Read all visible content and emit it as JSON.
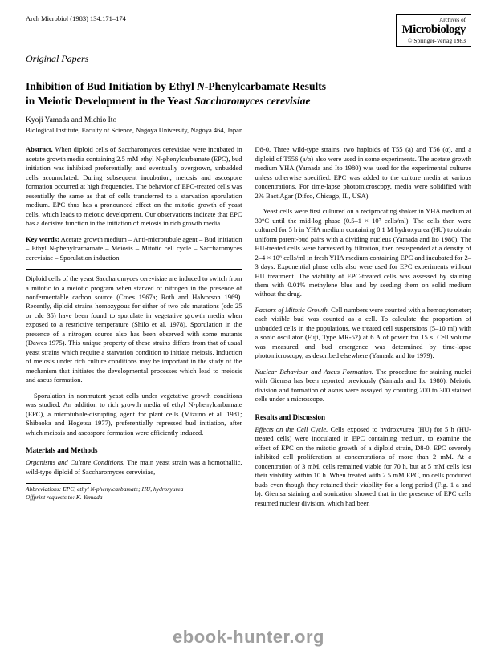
{
  "header": {
    "journal_ref": "Arch Microbiol (1983) 134:171–174",
    "journal_box_top": "Archives of",
    "journal_box_title": "Microbiology",
    "copyright": "© Springer-Verlag 1983"
  },
  "section_label": "Original Papers",
  "title_line1": "Inhibition of Bud Initiation by Ethyl ",
  "title_ital1": "N",
  "title_line1b": "-Phenylcarbamate Results",
  "title_line2": "in Meiotic Development in the Yeast ",
  "title_ital2": "Saccharomyces cerevisiae",
  "authors": "Kyoji Yamada and Michio Ito",
  "affiliation": "Biological Institute, Faculty of Science, Nagoya University, Nagoya 464, Japan",
  "left_col": {
    "abstract_label": "Abstract.",
    "abstract_text": " When diploid cells of Saccharomyces cerevisiae were incubated in acetate growth media containing 2.5 mM ethyl N-phenylcarbamate (EPC), bud initiation was inhibited preferentially, and eventually overgrown, unbudded cells accumulated. During subsequent incubation, meiosis and ascospore formation occurred at high frequencies. The behavior of EPC-treated cells was essentially the same as that of cells transferred to a starvation sporulation medium. EPC thus has a pronounced effect on the mitotic growth of yeast cells, which leads to meiotic development. Our observations indicate that EPC has a decisive function in the initiation of meiosis in rich growth media.",
    "keywords_label": "Key words:",
    "keywords_text": " Acetate growth medium – Anti-microtubule agent – Bud initiation – Ethyl N-phenylcarbamate – Meiosis – Mitotic cell cycle – Saccharomyces cerevisiae – Sporulation induction",
    "body_p1": "Diploid cells of the yeast Saccharomyces cerevisiae are induced to switch from a mitotic to a meiotic program when starved of nitrogen in the presence of nonfermentable carbon source (Croes 1967a; Roth and Halvorson 1969). Recently, diploid strains homozygous for either of two cdc mutations (cdc 25 or cdc 35) have been found to sporulate in vegetative growth media when exposed to a restrictive temperature (Shilo et al. 1978). Sporulation in the presence of a nitrogen source also has been observed with some mutants (Dawes 1975). This unique property of these strains differs from that of usual yeast strains which require a starvation condition to initiate meiosis. Induction of meiosis under rich culture conditions may be important in the study of the mechanism that initiates the developmental processes which lead to meiosis and ascus formation.",
    "body_p2": "Sporulation in nonmutant yeast cells under vegetative growth conditions was studied. An addition to rich growth media of ethyl N-phenylcarbamate (EPC), a microtubule-disrupting agent for plant cells (Mizuno et al. 1981; Shibaoka and Hogetsu 1977), preferentially repressed bud initiation, after which meiosis and ascospore formation were efficiently induced.",
    "materials_head": "Materials and Methods",
    "materials_sub": "Organisms and Culture Conditions.",
    "materials_text": " The main yeast strain was a homothallic, wild-type diploid of Saccharomyces cerevisiae,",
    "abbrev_label": "Abbreviations:",
    "abbrev_text": " EPC, ethyl N-phenylcarbamate; HU, hydroxyurea",
    "offprint_label": "Offprint requests to:",
    "offprint_text": " K. Yamada"
  },
  "right_col": {
    "p1": "D8-0. Three wild-type strains, two haploids of T55 (a) and T56 (α), and a diploid of T556 (a/α) also were used in some experiments. The acetate growth medium YHA (Yamada and Ito 1980) was used for the experimental cultures unless otherwise specified. EPC was added to the culture media at various concentrations. For time-lapse photomicroscopy, media were solidified with 2% Bact Agar (Difco, Chicago, IL, USA).",
    "p2": "Yeast cells were first cultured on a reciprocating shaker in YHA medium at 30°C until the mid-log phase (0.5–1 × 10⁷ cells/ml). The cells then were cultured for 5 h in YHA medium containing 0.1 M hydroxyurea (HU) to obtain uniform parent-bud pairs with a dividing nucleus (Yamada and Ito 1980). The HU-treated cells were harvested by filtration, then resuspended at a density of 2–4 × 10⁶ cells/ml in fresh YHA medium containing EPC and incubated for 2–3 days. Exponential phase cells also were used for EPC experiments without HU treatment. The viability of EPC-treated cells was assessed by staining them with 0.01% methylene blue and by seeding them on solid medium without the drug.",
    "factors_sub": "Factors of Mitotic Growth.",
    "factors_text": " Cell numbers were counted with a hemocytometer; each visible bud was counted as a cell. To calculate the proportion of unbudded cells in the populations, we treated cell suspensions (5–10 ml) with a sonic oscillator (Fuji, Type MR-52) at 6 A of power for 15 s. Cell volume was measured and bud emergence was determined by time-lapse photomicroscopy, as described elsewhere (Yamada and Ito 1979).",
    "nuclear_sub": "Nuclear Behaviour and Ascus Formation.",
    "nuclear_text": " The procedure for staining nuclei with Giemsa has been reported previously (Yamada and Ito 1980). Meiotic division and formation of ascus were assayed by counting 200 to 300 stained cells under a microscope.",
    "results_head": "Results and Discussion",
    "effects_sub": "Effects on the Cell Cycle.",
    "effects_text": " Cells exposed to hydroxyurea (HU) for 5 h (HU-treated cells) were inoculated in EPC containing medium, to examine the effect of EPC on the mitotic growth of a diploid strain, D8-0. EPC severely inhibited cell proliferation at concentrations of more than 2 mM. At a concentration of 3 mM, cells remained viable for 70 h, but at 5 mM cells lost their viability within 10 h. When treated with 2.5 mM EPC, no cells produced buds even though they retained their viability for a long period (Fig. 1 a and b). Giemsa staining and sonication showed that in the presence of EPC cells resumed nuclear division, which had been"
  },
  "watermark": "ebook-hunter.org"
}
